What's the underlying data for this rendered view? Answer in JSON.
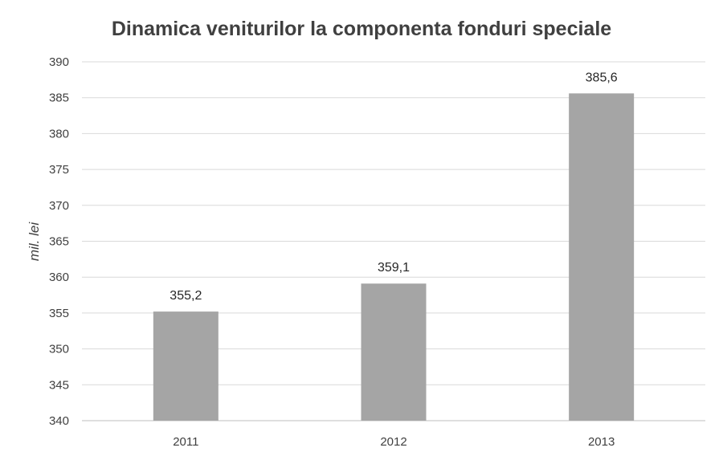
{
  "chart_data": {
    "type": "bar",
    "title": "Dinamica veniturilor la componenta fonduri speciale",
    "xlabel": "",
    "ylabel": "mil. lei",
    "categories": [
      "2011",
      "2012",
      "2013"
    ],
    "values": [
      355.2,
      359.1,
      385.6
    ],
    "data_labels": [
      "355,2",
      "359,1",
      "385,6"
    ],
    "ylim": [
      340,
      390
    ],
    "yticks": [
      340,
      345,
      350,
      355,
      360,
      365,
      370,
      375,
      380,
      385,
      390
    ],
    "grid": true,
    "legend": "none",
    "bar_color": "#a5a5a5",
    "grid_color": "#d9d9d9"
  }
}
